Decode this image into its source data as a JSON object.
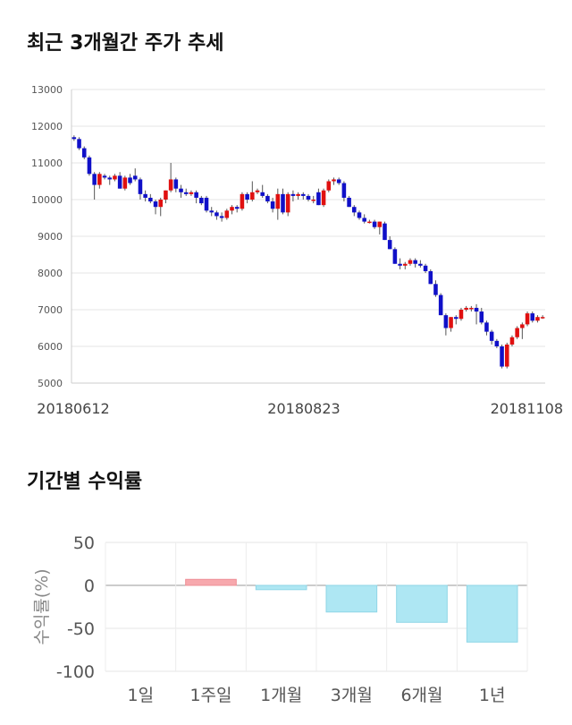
{
  "sections": {
    "price_title": "최근 3개월간 주가 추세",
    "returns_title": "기간별 수익률"
  },
  "chart_data": [
    {
      "type": "candlestick",
      "title": "최근 3개월간 주가 추세",
      "ylim": [
        5000,
        13000
      ],
      "y_ticks": [
        5000,
        6000,
        7000,
        8000,
        9000,
        10000,
        11000,
        12000,
        13000
      ],
      "x_tick_labels": [
        "20180612",
        "20180823",
        "20181108"
      ],
      "grid": true,
      "colors": {
        "up": "#e01010",
        "down": "#1010c8",
        "wick": "#555555"
      },
      "candles": [
        [
          11700,
          11750,
          11600,
          11650
        ],
        [
          11650,
          11700,
          11350,
          11400
        ],
        [
          11400,
          11450,
          11100,
          11150
        ],
        [
          11150,
          11200,
          10650,
          10700
        ],
        [
          10700,
          10750,
          10000,
          10400
        ],
        [
          10400,
          10750,
          10300,
          10700
        ],
        [
          10650,
          10700,
          10550,
          10600
        ],
        [
          10600,
          10650,
          10400,
          10550
        ],
        [
          10550,
          10700,
          10500,
          10650
        ],
        [
          10650,
          10750,
          10300,
          10300
        ],
        [
          10300,
          10650,
          10250,
          10600
        ],
        [
          10600,
          10700,
          10400,
          10450
        ],
        [
          10650,
          10850,
          10500,
          10550
        ],
        [
          10550,
          10600,
          10000,
          10150
        ],
        [
          10150,
          10250,
          9950,
          10050
        ],
        [
          10050,
          10150,
          9900,
          9950
        ],
        [
          9950,
          10000,
          9600,
          9800
        ],
        [
          9800,
          10050,
          9550,
          10000
        ],
        [
          10000,
          10250,
          9900,
          10250
        ],
        [
          10250,
          11000,
          10200,
          10550
        ],
        [
          10550,
          10600,
          10200,
          10300
        ],
        [
          10300,
          10400,
          10050,
          10200
        ],
        [
          10200,
          10300,
          10100,
          10150
        ],
        [
          10150,
          10250,
          10100,
          10200
        ],
        [
          10200,
          10250,
          9900,
          10050
        ],
        [
          10050,
          10100,
          9850,
          9900
        ],
        [
          10050,
          10100,
          9650,
          9700
        ],
        [
          9700,
          9800,
          9550,
          9650
        ],
        [
          9650,
          9700,
          9450,
          9550
        ],
        [
          9550,
          9650,
          9400,
          9500
        ],
        [
          9500,
          9750,
          9450,
          9700
        ],
        [
          9700,
          9850,
          9600,
          9800
        ],
        [
          9800,
          9850,
          9650,
          9750
        ],
        [
          9750,
          10200,
          9700,
          10150
        ],
        [
          10150,
          10200,
          9900,
          10000
        ],
        [
          10000,
          10500,
          9950,
          10200
        ],
        [
          10200,
          10300,
          10150,
          10250
        ],
        [
          10200,
          10400,
          10050,
          10100
        ],
        [
          10100,
          10150,
          9900,
          9950
        ],
        [
          9950,
          10050,
          9650,
          9750
        ],
        [
          9750,
          10300,
          9450,
          10150
        ],
        [
          10150,
          10300,
          9600,
          9650
        ],
        [
          9650,
          10200,
          9550,
          10150
        ],
        [
          10150,
          10250,
          9950,
          10100
        ],
        [
          10100,
          10200,
          10000,
          10150
        ],
        [
          10150,
          10200,
          10000,
          10100
        ],
        [
          10100,
          10150,
          9950,
          10000
        ],
        [
          10000,
          10100,
          9900,
          10000
        ],
        [
          10200,
          10300,
          9850,
          9850
        ],
        [
          9850,
          10300,
          9800,
          10250
        ],
        [
          10250,
          10550,
          10200,
          10500
        ],
        [
          10500,
          10600,
          10400,
          10550
        ],
        [
          10550,
          10600,
          10400,
          10450
        ],
        [
          10450,
          10500,
          9950,
          10050
        ],
        [
          10050,
          10100,
          9800,
          9800
        ],
        [
          9800,
          9850,
          9550,
          9650
        ],
        [
          9650,
          9700,
          9450,
          9500
        ],
        [
          9500,
          9600,
          9350,
          9400
        ],
        [
          9400,
          9450,
          9350,
          9400
        ],
        [
          9400,
          9450,
          9200,
          9250
        ],
        [
          9250,
          9400,
          9050,
          9400
        ],
        [
          9350,
          9400,
          8900,
          8900
        ],
        [
          8900,
          9000,
          8650,
          8650
        ],
        [
          8650,
          8700,
          8250,
          8250
        ],
        [
          8250,
          8400,
          8100,
          8200
        ],
        [
          8200,
          8300,
          8100,
          8250
        ],
        [
          8250,
          8400,
          8200,
          8350
        ],
        [
          8350,
          8400,
          8150,
          8250
        ],
        [
          8250,
          8350,
          8150,
          8200
        ],
        [
          8200,
          8250,
          8000,
          8050
        ],
        [
          8050,
          8100,
          7700,
          7700
        ],
        [
          7700,
          7800,
          7350,
          7400
        ],
        [
          7400,
          7450,
          6850,
          6850
        ],
        [
          6850,
          6900,
          6300,
          6500
        ],
        [
          6500,
          6800,
          6400,
          6800
        ],
        [
          6800,
          6850,
          6600,
          6750
        ],
        [
          6750,
          7050,
          6700,
          7000
        ],
        [
          7000,
          7100,
          6950,
          7050
        ],
        [
          7050,
          7100,
          6950,
          7050
        ],
        [
          7050,
          7150,
          6600,
          6950
        ],
        [
          6950,
          7050,
          6600,
          6650
        ],
        [
          6650,
          6700,
          6300,
          6400
        ],
        [
          6400,
          6450,
          6050,
          6150
        ],
        [
          6150,
          6200,
          5950,
          6000
        ],
        [
          6000,
          6050,
          5400,
          5450
        ],
        [
          5450,
          6100,
          5400,
          6050
        ],
        [
          6050,
          6300,
          6000,
          6250
        ],
        [
          6250,
          6550,
          6200,
          6500
        ],
        [
          6500,
          6650,
          6200,
          6600
        ],
        [
          6600,
          6950,
          6550,
          6900
        ],
        [
          6900,
          6950,
          6650,
          6700
        ],
        [
          6700,
          6850,
          6650,
          6800
        ],
        [
          6800,
          6850,
          6750,
          6800
        ]
      ]
    },
    {
      "type": "bar",
      "title": "기간별 수익률",
      "categories": [
        "1일",
        "1주일",
        "1개월",
        "3개월",
        "6개월",
        "1년"
      ],
      "values": [
        0,
        7,
        -5,
        -31,
        -43,
        -66
      ],
      "ylabel": "수익률(%)",
      "ylim": [
        -100,
        50
      ],
      "y_ticks": [
        50,
        0,
        -50,
        -100
      ],
      "grid": true,
      "colors": {
        "positive": "#f7a8ad",
        "negative": "#aee7f3"
      }
    }
  ]
}
